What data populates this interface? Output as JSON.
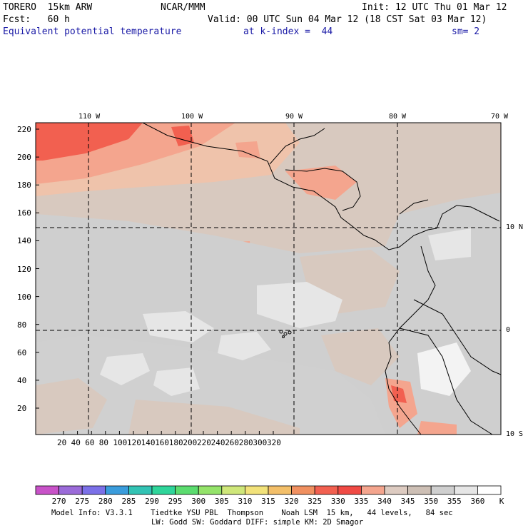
{
  "header": {
    "model": "TORERO  15km ARW",
    "org": "NCAR/MMM",
    "init": "Init: 12 UTC Thu 01 Mar 12",
    "fcst": "Fcst:   60 h",
    "valid": "Valid: 00 UTC Sun 04 Mar 12 (18 CST Sat 03 Mar 12)",
    "field": "Equivalent potential temperature",
    "level": "at k-index =  44",
    "smooth": "sm= 2"
  },
  "map": {
    "lon_labels": [
      "110 W",
      "100 W",
      "90 W",
      "80 W",
      "70 W"
    ],
    "lat_labels": [
      "10 N",
      "0",
      "10 S"
    ],
    "x_ticks": [
      "20",
      "40",
      "60",
      "80",
      "100",
      "120",
      "140",
      "160",
      "180",
      "200",
      "220",
      "240",
      "260",
      "280",
      "300",
      "320"
    ],
    "y_ticks": [
      "220",
      "200",
      "180",
      "160",
      "140",
      "120",
      "100",
      "80",
      "60",
      "40",
      "20"
    ]
  },
  "colorbar": {
    "labels": [
      "270",
      "275",
      "280",
      "285",
      "290",
      "295",
      "300",
      "305",
      "310",
      "315",
      "320",
      "325",
      "330",
      "335",
      "340",
      "345",
      "350",
      "355",
      "360"
    ],
    "unit": "K",
    "colors": [
      "#c852c8",
      "#9b6bd9",
      "#7b70e8",
      "#3a9cdc",
      "#32c3b4",
      "#2fd59a",
      "#5bdc6f",
      "#94e36a",
      "#cfe77a",
      "#f2e27a",
      "#f3bf69",
      "#f09060",
      "#f26050",
      "#f04a44",
      "#f4a58e",
      "#ddcbc1",
      "#cdbfb5",
      "#cfcfcf",
      "#e6e6e6",
      "#ffffff"
    ]
  },
  "footer": {
    "line1": "Model Info: V3.3.1    Tiedtke YSU PBL  Thompson    Noah LSM  15 km,   44 levels,   84 sec",
    "line2": "LW: Godd SW: Goddard DIFF: simple KM: 2D Smagor"
  }
}
